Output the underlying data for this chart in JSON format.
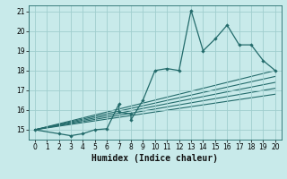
{
  "xlabel": "Humidex (Indice chaleur)",
  "bg_color": "#c8eaea",
  "grid_color": "#a0cece",
  "line_color": "#236b6b",
  "xlim": [
    -0.5,
    20.5
  ],
  "ylim": [
    14.5,
    21.3
  ],
  "xticks": [
    0,
    1,
    2,
    3,
    4,
    5,
    6,
    7,
    8,
    9,
    10,
    11,
    12,
    13,
    14,
    15,
    16,
    17,
    18,
    19,
    20
  ],
  "yticks": [
    15,
    16,
    17,
    18,
    19,
    20,
    21
  ],
  "scatter_x": [
    0,
    2,
    3,
    4,
    5,
    6,
    7,
    7,
    8,
    8,
    9,
    10,
    11,
    12,
    13,
    14,
    15,
    16,
    17,
    18,
    19,
    20
  ],
  "scatter_y": [
    15.0,
    14.8,
    14.7,
    14.8,
    15.0,
    15.05,
    16.3,
    15.9,
    15.8,
    15.5,
    16.5,
    18.0,
    18.1,
    18.0,
    21.05,
    19.0,
    19.6,
    20.3,
    19.3,
    19.3,
    18.5,
    18.0
  ],
  "line_sets": [
    {
      "x": [
        0,
        20
      ],
      "y": [
        15.0,
        18.0
      ]
    },
    {
      "x": [
        0,
        20
      ],
      "y": [
        15.0,
        17.7
      ]
    },
    {
      "x": [
        0,
        20
      ],
      "y": [
        15.0,
        17.4
      ]
    },
    {
      "x": [
        0,
        20
      ],
      "y": [
        15.0,
        17.1
      ]
    },
    {
      "x": [
        0,
        20
      ],
      "y": [
        15.0,
        16.8
      ]
    }
  ],
  "tick_fontsize": 5.5,
  "xlabel_fontsize": 7.0
}
